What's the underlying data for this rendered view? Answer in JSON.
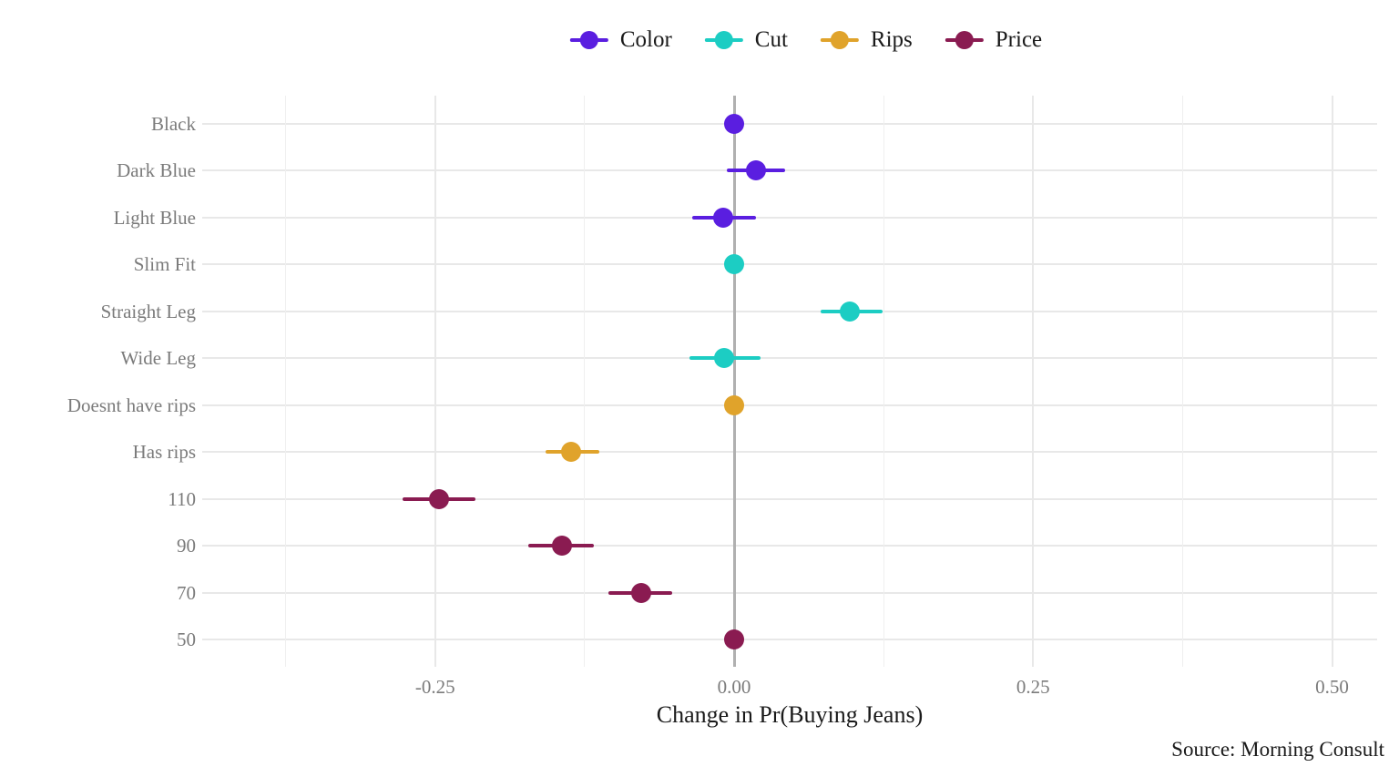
{
  "chart_data": {
    "type": "scatter",
    "subtype": "dot-whisker-coefficient-plot",
    "title": "",
    "xlabel": "Change in Pr(Buying Jeans)",
    "ylabel": "",
    "xlim": [
      -0.375,
      0.54
    ],
    "grid": true,
    "legend_position": "top-center",
    "x_major_ticks": [
      {
        "value": -0.25,
        "label": "-0.25"
      },
      {
        "value": 0.0,
        "label": "0.00"
      },
      {
        "value": 0.25,
        "label": "0.25"
      },
      {
        "value": 0.5,
        "label": "0.50"
      }
    ],
    "x_minor_ticks": [
      -0.375,
      -0.125,
      0.125,
      0.375
    ],
    "legend": [
      {
        "name": "Color",
        "color": "#5a1ee0"
      },
      {
        "name": "Cut",
        "color": "#1ccdc3"
      },
      {
        "name": "Rips",
        "color": "#e0a32b"
      },
      {
        "name": "Price",
        "color": "#8a1b51"
      }
    ],
    "series": [
      {
        "category": "Black",
        "group": "Color",
        "color": "#5a1ee0",
        "value": 0.0,
        "ci_low": 0.0,
        "ci_high": 0.0
      },
      {
        "category": "Dark Blue",
        "group": "Color",
        "color": "#5a1ee0",
        "value": 0.018,
        "ci_low": -0.006,
        "ci_high": 0.043
      },
      {
        "category": "Light Blue",
        "group": "Color",
        "color": "#5a1ee0",
        "value": -0.009,
        "ci_low": -0.035,
        "ci_high": 0.018
      },
      {
        "category": "Slim Fit",
        "group": "Cut",
        "color": "#1ccdc3",
        "value": 0.0,
        "ci_low": 0.0,
        "ci_high": 0.0
      },
      {
        "category": "Straight Leg",
        "group": "Cut",
        "color": "#1ccdc3",
        "value": 0.097,
        "ci_low": 0.072,
        "ci_high": 0.124
      },
      {
        "category": "Wide Leg",
        "group": "Cut",
        "color": "#1ccdc3",
        "value": -0.008,
        "ci_low": -0.037,
        "ci_high": 0.022
      },
      {
        "category": "Doesnt have rips",
        "group": "Rips",
        "color": "#e0a32b",
        "value": 0.0,
        "ci_low": 0.0,
        "ci_high": 0.0
      },
      {
        "category": "Has rips",
        "group": "Rips",
        "color": "#e0a32b",
        "value": -0.136,
        "ci_low": -0.158,
        "ci_high": -0.113
      },
      {
        "category": "110",
        "group": "Price",
        "color": "#8a1b51",
        "value": -0.247,
        "ci_low": -0.277,
        "ci_high": -0.216
      },
      {
        "category": "90",
        "group": "Price",
        "color": "#8a1b51",
        "value": -0.144,
        "ci_low": -0.172,
        "ci_high": -0.117
      },
      {
        "category": "70",
        "group": "Price",
        "color": "#8a1b51",
        "value": -0.078,
        "ci_low": -0.105,
        "ci_high": -0.052
      },
      {
        "category": "50",
        "group": "Price",
        "color": "#8a1b51",
        "value": 0.0,
        "ci_low": 0.0,
        "ci_high": 0.0
      }
    ],
    "source": "Source: Morning Consult"
  },
  "colors": {
    "background": "#ffffff",
    "grid_major": "#e8e8e8",
    "grid_minor": "#efefef",
    "zero_line": "#b0b0b0",
    "axis_text": "#7b7b7b",
    "text": "#1a1a1a"
  }
}
